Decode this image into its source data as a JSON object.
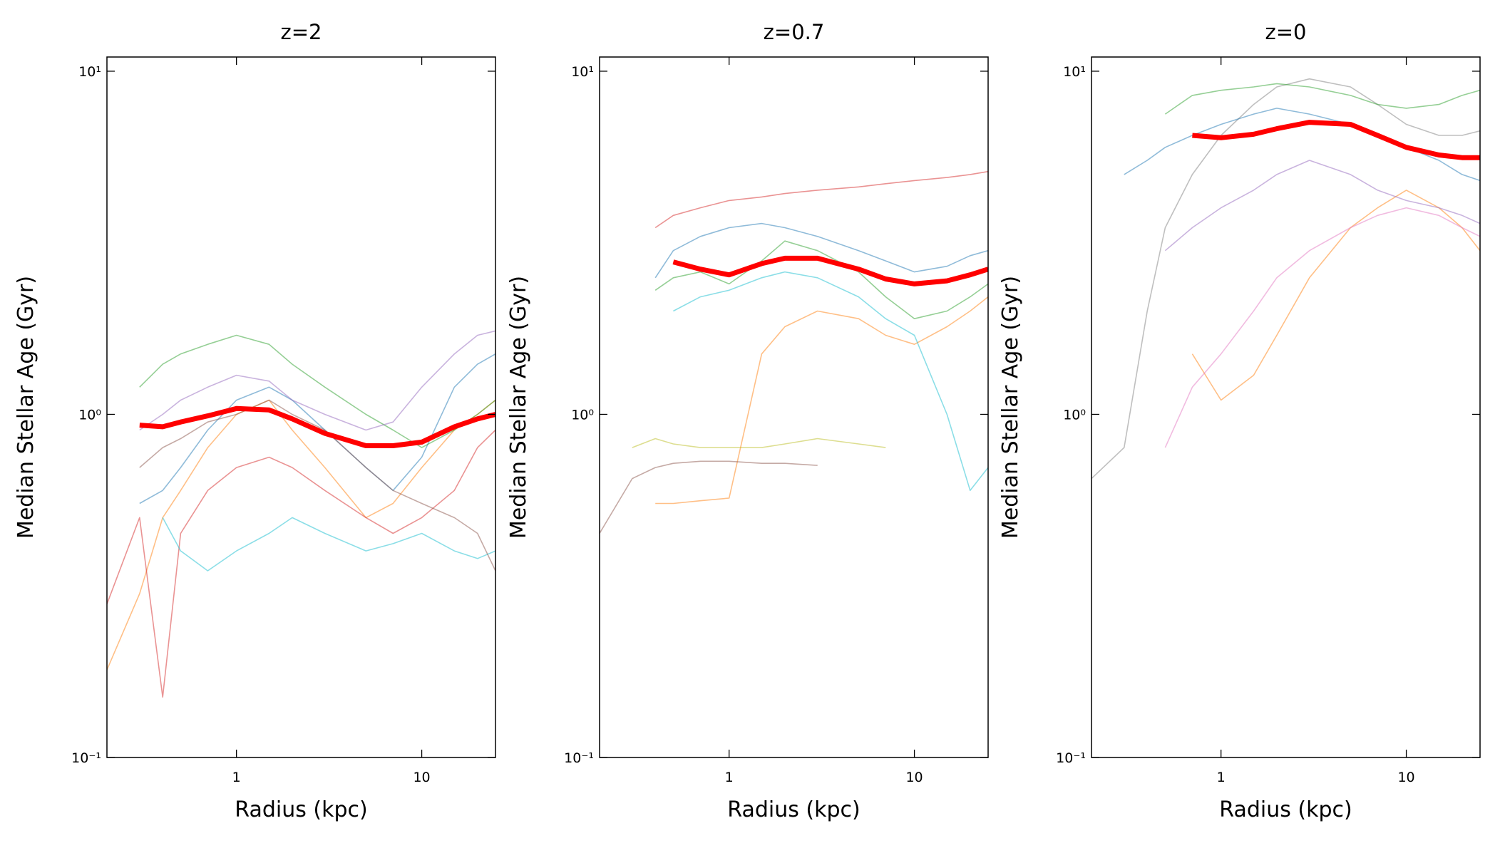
{
  "chart_data": [
    {
      "type": "line",
      "title": "z=2",
      "xlabel": "Radius (kpc)",
      "ylabel": "Median Stellar Age (Gyr)",
      "xlog": true,
      "ylog": true,
      "xlim": [
        0.2,
        25
      ],
      "ylim": [
        0.1,
        11
      ],
      "xticks": [
        1,
        10
      ],
      "yticks": [
        {
          "value": 0.1,
          "label": "10⁻¹"
        },
        {
          "value": 1,
          "label": "10⁰"
        },
        {
          "value": 10,
          "label": "10¹"
        }
      ],
      "x": [
        0.2,
        0.3,
        0.4,
        0.5,
        0.7,
        1,
        1.5,
        2,
        3,
        5,
        7,
        10,
        15,
        20,
        25
      ],
      "series": [
        {
          "color": "#1f77b4",
          "values": [
            null,
            0.55,
            0.6,
            0.7,
            0.9,
            1.1,
            1.2,
            1.1,
            0.9,
            0.7,
            0.6,
            0.75,
            1.2,
            1.4,
            1.5
          ]
        },
        {
          "color": "#ff7f0e",
          "values": [
            0.18,
            0.3,
            0.5,
            0.6,
            0.8,
            1.0,
            1.1,
            0.9,
            0.7,
            0.5,
            0.55,
            0.7,
            0.9,
            1.0,
            1.1
          ]
        },
        {
          "color": "#2ca02c",
          "values": [
            null,
            1.2,
            1.4,
            1.5,
            1.6,
            1.7,
            1.6,
            1.4,
            1.2,
            1.0,
            0.9,
            0.8,
            0.9,
            1.0,
            1.1
          ]
        },
        {
          "color": "#d62728",
          "values": [
            0.28,
            0.5,
            0.15,
            0.45,
            0.6,
            0.7,
            0.75,
            0.7,
            0.6,
            0.5,
            0.45,
            0.5,
            0.6,
            0.8,
            0.9
          ]
        },
        {
          "color": "#9467bd",
          "values": [
            null,
            0.9,
            1.0,
            1.1,
            1.2,
            1.3,
            1.25,
            1.1,
            1.0,
            0.9,
            0.95,
            1.2,
            1.5,
            1.7,
            1.75
          ]
        },
        {
          "color": "#17becf",
          "values": [
            null,
            null,
            0.5,
            0.4,
            0.35,
            0.4,
            0.45,
            0.5,
            0.45,
            0.4,
            0.42,
            0.45,
            0.4,
            0.38,
            0.4
          ]
        },
        {
          "color": "#8c564b",
          "values": [
            null,
            0.7,
            0.8,
            0.85,
            0.95,
            1.0,
            1.1,
            1.0,
            0.9,
            0.7,
            0.6,
            0.55,
            0.5,
            0.45,
            0.35
          ]
        },
        {
          "color": "#ff0000",
          "linewidth": 7,
          "values": [
            null,
            0.93,
            0.92,
            0.95,
            0.99,
            1.04,
            1.03,
            0.97,
            0.88,
            0.81,
            0.81,
            0.83,
            0.92,
            0.97,
            1.0
          ]
        }
      ]
    },
    {
      "type": "line",
      "title": "z=0.7",
      "xlabel": "Radius (kpc)",
      "ylabel": "Median Stellar Age (Gyr)",
      "xlog": true,
      "ylog": true,
      "xlim": [
        0.2,
        25
      ],
      "ylim": [
        0.1,
        11
      ],
      "xticks": [
        1,
        10
      ],
      "yticks": [
        {
          "value": 0.1,
          "label": "10⁻¹"
        },
        {
          "value": 1,
          "label": "10⁰"
        },
        {
          "value": 10,
          "label": "10¹"
        }
      ],
      "x": [
        0.2,
        0.3,
        0.4,
        0.5,
        0.7,
        1,
        1.5,
        2,
        3,
        5,
        7,
        10,
        15,
        20,
        25
      ],
      "series": [
        {
          "color": "#1f77b4",
          "values": [
            null,
            null,
            2.5,
            3.0,
            3.3,
            3.5,
            3.6,
            3.5,
            3.3,
            3.0,
            2.8,
            2.6,
            2.7,
            2.9,
            3.0
          ]
        },
        {
          "color": "#ff7f0e",
          "values": [
            null,
            null,
            0.55,
            0.55,
            0.56,
            0.57,
            1.5,
            1.8,
            2.0,
            1.9,
            1.7,
            1.6,
            1.8,
            2.0,
            2.2
          ]
        },
        {
          "color": "#bcbd22",
          "values": [
            null,
            0.8,
            0.85,
            0.82,
            0.8,
            0.8,
            0.8,
            0.82,
            0.85,
            0.82,
            0.8,
            null,
            null,
            null,
            null
          ]
        },
        {
          "color": "#8c564b",
          "values": [
            0.45,
            0.65,
            0.7,
            0.72,
            0.73,
            0.73,
            0.72,
            0.72,
            0.71,
            null,
            null,
            null,
            null,
            null,
            null
          ]
        },
        {
          "color": "#d62728",
          "values": [
            null,
            null,
            3.5,
            3.8,
            4.0,
            4.2,
            4.3,
            4.4,
            4.5,
            4.6,
            4.7,
            4.8,
            4.9,
            5.0,
            5.1
          ]
        },
        {
          "color": "#2ca02c",
          "values": [
            null,
            null,
            2.3,
            2.5,
            2.6,
            2.4,
            2.8,
            3.2,
            3.0,
            2.6,
            2.2,
            1.9,
            2.0,
            2.2,
            2.4
          ]
        },
        {
          "color": "#17becf",
          "values": [
            null,
            null,
            null,
            2.0,
            2.2,
            2.3,
            2.5,
            2.6,
            2.5,
            2.2,
            1.9,
            1.7,
            1.0,
            0.6,
            0.7
          ]
        },
        {
          "color": "#ff0000",
          "linewidth": 7,
          "values": [
            null,
            null,
            null,
            2.78,
            2.65,
            2.55,
            2.75,
            2.85,
            2.85,
            2.65,
            2.48,
            2.4,
            2.45,
            2.55,
            2.65
          ]
        }
      ]
    },
    {
      "type": "line",
      "title": "z=0",
      "xlabel": "Radius (kpc)",
      "ylabel": "Median Stellar Age (Gyr)",
      "xlog": true,
      "ylog": true,
      "xlim": [
        0.2,
        25
      ],
      "ylim": [
        0.1,
        11
      ],
      "xticks": [
        1,
        10
      ],
      "yticks": [
        {
          "value": 0.1,
          "label": "10⁻¹"
        },
        {
          "value": 1,
          "label": "10⁰"
        },
        {
          "value": 10,
          "label": "10¹"
        }
      ],
      "x": [
        0.2,
        0.3,
        0.4,
        0.5,
        0.7,
        1,
        1.5,
        2,
        3,
        5,
        7,
        10,
        15,
        20,
        25
      ],
      "series": [
        {
          "color": "#7f7f7f",
          "values": [
            0.65,
            0.8,
            2.0,
            3.5,
            5.0,
            6.5,
            8.0,
            9.0,
            9.5,
            9.0,
            8.0,
            7.0,
            6.5,
            6.5,
            6.7
          ]
        },
        {
          "color": "#1f77b4",
          "values": [
            null,
            5.0,
            5.5,
            6.0,
            6.5,
            7.0,
            7.5,
            7.8,
            7.5,
            7.0,
            6.5,
            6.0,
            5.5,
            5.0,
            4.8
          ]
        },
        {
          "color": "#ff7f0e",
          "values": [
            null,
            null,
            null,
            null,
            1.5,
            1.1,
            1.3,
            1.7,
            2.5,
            3.5,
            4.0,
            4.5,
            4.0,
            3.5,
            3.0
          ]
        },
        {
          "color": "#e377c2",
          "values": [
            null,
            null,
            null,
            0.8,
            1.2,
            1.5,
            2.0,
            2.5,
            3.0,
            3.5,
            3.8,
            4.0,
            3.8,
            3.5,
            3.3
          ]
        },
        {
          "color": "#2ca02c",
          "values": [
            null,
            null,
            null,
            7.5,
            8.5,
            8.8,
            9.0,
            9.2,
            9.0,
            8.5,
            8.0,
            7.8,
            8.0,
            8.5,
            8.8
          ]
        },
        {
          "color": "#9467bd",
          "values": [
            null,
            null,
            null,
            3.0,
            3.5,
            4.0,
            4.5,
            5.0,
            5.5,
            5.0,
            4.5,
            4.2,
            4.0,
            3.8,
            3.6
          ]
        },
        {
          "color": "#ff0000",
          "linewidth": 7,
          "values": [
            null,
            null,
            null,
            null,
            6.5,
            6.4,
            6.55,
            6.8,
            7.1,
            7.0,
            6.5,
            6.0,
            5.7,
            5.6,
            5.6
          ]
        }
      ]
    }
  ]
}
